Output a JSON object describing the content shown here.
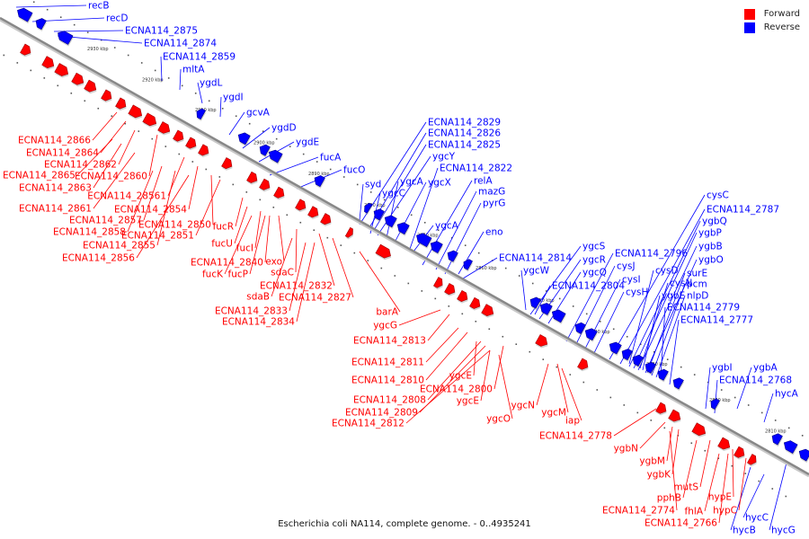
{
  "caption": "Escherichia coli NA114, complete genome. - 0..4935241",
  "legend": [
    {
      "label": "Forward",
      "color": "#ff0000"
    },
    {
      "label": "Reverse",
      "color": "#0000ff"
    }
  ],
  "colors": {
    "forward": "#ff0000",
    "reverse": "#0000ff",
    "backbone": "#888888"
  },
  "ticks": [
    "2930 kbp",
    "2920 kbp",
    "2910 kbp",
    "2900 kbp",
    "2890 kbp",
    "2880 kbp",
    "2870 kbp",
    "2860 kbp",
    "2850 kbp",
    "2840 kbp",
    "2830 kbp",
    "2820 kbp",
    "2810 kbp"
  ],
  "reverse_labels": [
    "recB",
    "recD",
    "ECNA114_2875",
    "ECNA114_2874",
    "ECNA114_2859",
    "mltA",
    "ygdL",
    "ygdI",
    "gcvA",
    "ygdD",
    "ygdE",
    "fucA",
    "fucO",
    "syd",
    "ECNA114_2829",
    "ECNA114_2826",
    "ECNA114_2825",
    "ygcY",
    "ygcA",
    "ygcC",
    "ygcX",
    "ECNA114_2822",
    "relA",
    "mazG",
    "pyrG",
    "ygcA",
    "eno",
    "ECNA114_2814",
    "ygcW",
    "ygcS",
    "ygcR",
    "ygcQ",
    "ECNA114_2804",
    "ECNA114_2796",
    "cysJ",
    "cysI",
    "cysH",
    "cysC",
    "ECNA114_2787",
    "ygbQ",
    "ygbP",
    "ygbB",
    "ygbO",
    "cysD",
    "cysN",
    "surE",
    "pcm",
    "ygbE",
    "nlpD",
    "ECNA114_2779",
    "ECNA114_2777",
    "ygbI",
    "ygbA",
    "ECNA114_2768",
    "hycA",
    "hycC",
    "hycB",
    "hycG"
  ],
  "forward_labels": [
    "ECNA114_2866",
    "ECNA114_2864",
    "ECNA114_2862",
    "ECNA114_2865",
    "ECNA114_2860",
    "ECNA114_2863",
    "ECNA114_28561",
    "ECNA114_2861",
    "ECNA114_2854",
    "ECNA114_2857",
    "ECNA114_2850",
    "ECNA114_2858",
    "ECNA114_2851",
    "ECNA114_2855",
    "ECNA114_2856",
    "fucR",
    "fucU",
    "fucI",
    "exo",
    "ECNA114_2840",
    "fucK",
    "fucP",
    "sdaC",
    "ECNA114_2832",
    "sdaB",
    "ECNA114_2827",
    "ECNA114_2833",
    "ECNA114_2834",
    "barA",
    "ygcG",
    "ECNA114_2813",
    "ECNA114_2811",
    "ECNA114_2810",
    "ygcE",
    "ECNA114_2800",
    "ECNA114_2808",
    "ygcN",
    "ECNA114_2809",
    "ygcE",
    "ygcM",
    "ygcO",
    "ECNA114_2812",
    "iap",
    "ECNA114_2778",
    "ygbN",
    "ygbM",
    "ygbK",
    "mutS",
    "pphB",
    "hypE",
    "ECNA114_2774",
    "fhlA",
    "hypC",
    "ECNA114_2766"
  ]
}
